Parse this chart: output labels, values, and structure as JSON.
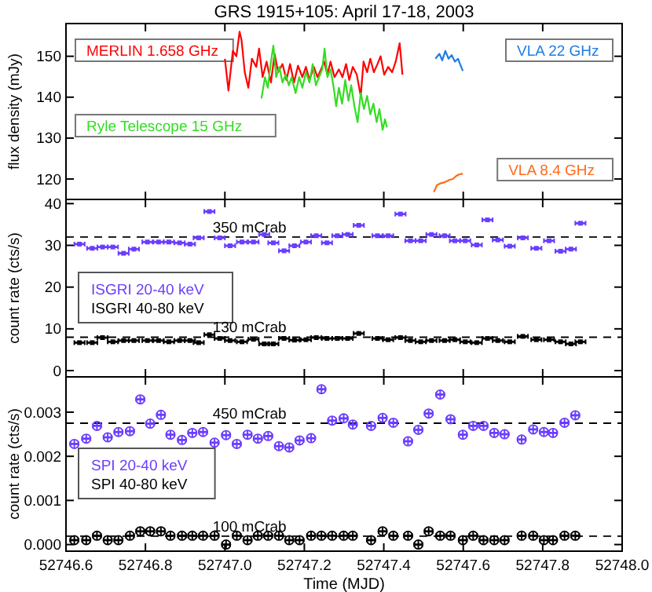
{
  "chart_data": [
    {
      "type": "line",
      "title": "GRS 1915+105: April 17-18, 2003",
      "ylabel": "flux density (mJy)",
      "xlim": [
        52746.6,
        52748.0
      ],
      "xticks": [
        52746.6,
        52746.8,
        52747,
        52747.2,
        52747.4,
        52747.6,
        52747.8,
        52748
      ],
      "ylim": [
        115,
        158
      ],
      "yticks": [
        120,
        130,
        140,
        150
      ],
      "tick_labels": "y",
      "series": [
        {
          "name": "MERLIN 1.658 GHz",
          "color": "#ff0000",
          "x": [
            52747.0,
            52747.009,
            52747.02,
            52747.029,
            52747.037,
            52747.042,
            52747.05,
            52747.059,
            52747.068,
            52747.079,
            52747.086,
            52747.095,
            52747.105,
            52747.116,
            52747.125,
            52747.134,
            52747.145,
            52747.155,
            52747.164,
            52747.174,
            52747.184,
            52747.195,
            52747.204,
            52747.213,
            52747.224,
            52747.233,
            52747.242,
            52747.25,
            52747.258,
            52747.266,
            52747.276,
            52747.287,
            52747.296,
            52747.305,
            52747.313,
            52747.322,
            52747.332,
            52747.342,
            52747.349,
            52747.358,
            52747.366,
            52747.375,
            52747.384,
            52747.392,
            52747.401,
            52747.411,
            52747.421,
            52747.43,
            52747.44,
            52747.447
          ],
          "values": [
            149.4,
            141.6,
            151.3,
            150,
            156,
            153.9,
            146.1,
            142.3,
            149.4,
            147.4,
            151.9,
            144.9,
            148.7,
            143.6,
            150.6,
            146.1,
            148.1,
            144.2,
            148.1,
            143.6,
            147.7,
            144.9,
            147.4,
            144.2,
            147.4,
            144.9,
            146.8,
            148.7,
            145.5,
            148.7,
            144.9,
            146.8,
            144.9,
            148.1,
            144.2,
            147.4,
            145.5,
            140.3,
            148.7,
            146.1,
            149.4,
            146.1,
            148.1,
            150,
            145.5,
            147.4,
            146.1,
            148.7,
            153.2,
            145.5
          ]
        },
        {
          "name": "Ryle Telescope 15 GHz",
          "color": "#33dd22",
          "x": [
            52747.092,
            52747.101,
            52747.108,
            52747.116,
            52747.122,
            52747.129,
            52747.137,
            52747.145,
            52747.153,
            52747.161,
            52747.168,
            52747.178,
            52747.187,
            52747.195,
            52747.204,
            52747.213,
            52747.221,
            52747.229,
            52747.237,
            52747.245,
            52747.251,
            52747.258,
            52747.266,
            52747.274,
            52747.28,
            52747.287,
            52747.295,
            52747.303,
            52747.311,
            52747.318,
            52747.326,
            52747.334,
            52747.342,
            52747.35,
            52747.358,
            52747.366,
            52747.374,
            52747.382,
            52747.389,
            52747.397,
            52747.403,
            52747.408
          ],
          "values": [
            139.7,
            144.9,
            142.3,
            148.7,
            152.6,
            144.9,
            147.4,
            143.6,
            145.5,
            142.9,
            144.9,
            141,
            144.9,
            142.3,
            146.1,
            143.6,
            148.1,
            142.9,
            144.9,
            146.8,
            151.9,
            144.9,
            146.8,
            142.3,
            137.8,
            142.3,
            138.4,
            144.2,
            139.1,
            142.9,
            137.8,
            133.9,
            141,
            137.1,
            140.3,
            135.8,
            138.4,
            133.9,
            137.1,
            132,
            134.6,
            132.6
          ]
        },
        {
          "name": "VLA 22 GHz",
          "color": "#1e7de6",
          "x": [
            52747.53,
            52747.54,
            52747.547,
            52747.555,
            52747.563,
            52747.571,
            52747.579,
            52747.587,
            52747.592,
            52747.599
          ],
          "values": [
            149.4,
            150.6,
            149,
            151.3,
            149.4,
            150.3,
            148.7,
            149.4,
            148.1,
            146.4
          ]
        },
        {
          "name": "VLA 8.4 GHz",
          "color": "#ff6a1a",
          "x": [
            52747.526,
            52747.534,
            52747.542,
            52747.55,
            52747.558,
            52747.566,
            52747.574,
            52747.582,
            52747.589,
            52747.599
          ],
          "values": [
            116.8,
            118.5,
            118.9,
            119.1,
            119.4,
            119.8,
            120,
            120.7,
            121.1,
            121.3
          ]
        }
      ]
    },
    {
      "type": "scatter",
      "ylabel": "count rate (cts/s)",
      "xlim": [
        52746.6,
        52748.0
      ],
      "xticks": [
        52746.6,
        52746.8,
        52747,
        52747.2,
        52747.4,
        52747.6,
        52747.8,
        52748
      ],
      "ylim": [
        -1.5,
        41
      ],
      "yticks": [
        0,
        10,
        20,
        30,
        40
      ],
      "tick_labels": "y",
      "legend": "left",
      "marker": "square",
      "x": [
        52746.634,
        52746.666,
        52746.692,
        52746.718,
        52746.745,
        52746.771,
        52746.805,
        52746.833,
        52746.859,
        52746.886,
        52746.912,
        52746.934,
        52746.961,
        52746.987,
        52747.013,
        52747.043,
        52747.072,
        52747.099,
        52747.122,
        52747.149,
        52747.175,
        52747.204,
        52747.23,
        52747.257,
        52747.283,
        52747.309,
        52747.337,
        52747.384,
        52747.411,
        52747.442,
        52747.467,
        52747.493,
        52747.52,
        52747.553,
        52747.579,
        52747.605,
        52747.634,
        52747.661,
        52747.687,
        52747.717,
        52747.75,
        52747.784,
        52747.816,
        52747.845,
        52747.871,
        52747.895
      ],
      "ref_lines": [
        {
          "axis": "y",
          "value": 32,
          "label": "350 mCrab",
          "line_style": "dashed"
        },
        {
          "axis": "y",
          "value": 8,
          "label": "130 mCrab",
          "line_style": "dashed"
        }
      ],
      "series": [
        {
          "name": "ISGRI 20-40 keV",
          "color": "#6a3dff",
          "values": [
            30.3,
            29.3,
            29.6,
            29.6,
            28.1,
            29.1,
            30.8,
            30.8,
            30.8,
            30.6,
            30.3,
            31.8,
            38.1,
            31.8,
            29.9,
            30.8,
            30.8,
            32.6,
            30.6,
            28.7,
            29.9,
            30.8,
            32.3,
            30.6,
            32.3,
            32.6,
            34.8,
            32.3,
            32.3,
            37.5,
            31.1,
            31.1,
            32.6,
            32.3,
            31.1,
            31.1,
            30.1,
            36.1,
            31.3,
            29.8,
            31.8,
            29.3,
            31.1,
            28.6,
            29.1,
            35.3
          ],
          "errors": [
            0.3,
            0.3,
            0.3,
            0.3,
            0.3,
            0.3,
            0.3,
            0.3,
            0.3,
            0.3,
            0.3,
            0.3,
            0.3,
            0.3,
            0.3,
            0.3,
            0.3,
            0.3,
            0.3,
            0.3,
            0.3,
            0.3,
            0.3,
            0.3,
            0.3,
            0.3,
            0.3,
            0.3,
            0.3,
            0.3,
            0.3,
            0.3,
            0.3,
            0.3,
            0.3,
            0.3,
            0.3,
            0.3,
            0.3,
            0.3,
            0.3,
            0.3,
            0.3,
            0.3,
            0.3,
            0.3
          ],
          "xerrors": [
            0.013,
            0.013,
            0.013,
            0.013,
            0.013,
            0.013,
            0.013,
            0.013,
            0.013,
            0.013,
            0.013,
            0.013,
            0.013,
            0.013,
            0.013,
            0.013,
            0.013,
            0.013,
            0.013,
            0.013,
            0.013,
            0.013,
            0.013,
            0.013,
            0.013,
            0.013,
            0.013,
            0.013,
            0.013,
            0.013,
            0.013,
            0.013,
            0.013,
            0.013,
            0.013,
            0.013,
            0.013,
            0.013,
            0.013,
            0.013,
            0.013,
            0.013,
            0.013,
            0.013,
            0.013,
            0.013
          ]
        },
        {
          "name": "ISGRI 40-80 keV",
          "color": "#000000",
          "values": [
            6.7,
            6.7,
            7.9,
            6.9,
            7.2,
            7.2,
            7.2,
            7.2,
            6.9,
            7.2,
            7.2,
            6.7,
            8.6,
            7.7,
            7.2,
            6.9,
            7.5,
            6.4,
            6.4,
            7.7,
            7.3,
            7.4,
            7.9,
            7.7,
            7.7,
            7.7,
            8.9,
            7.7,
            7.4,
            7.9,
            7.2,
            6.9,
            7.2,
            7.2,
            7.4,
            6.9,
            6.7,
            7.7,
            7.2,
            6.9,
            8.2,
            7.4,
            7.4,
            6.9,
            6.4,
            6.9
          ],
          "errors": [
            0.3,
            0.3,
            0.3,
            0.3,
            0.3,
            0.3,
            0.3,
            0.3,
            0.3,
            0.3,
            0.3,
            0.3,
            0.3,
            0.3,
            0.3,
            0.3,
            0.3,
            0.3,
            0.3,
            0.3,
            0.3,
            0.3,
            0.3,
            0.3,
            0.3,
            0.3,
            0.3,
            0.3,
            0.3,
            0.3,
            0.3,
            0.3,
            0.3,
            0.3,
            0.3,
            0.3,
            0.3,
            0.3,
            0.3,
            0.3,
            0.3,
            0.3,
            0.3,
            0.3,
            0.3,
            0.3
          ],
          "xerrors": [
            0.013,
            0.013,
            0.013,
            0.013,
            0.013,
            0.013,
            0.013,
            0.013,
            0.013,
            0.013,
            0.013,
            0.013,
            0.013,
            0.013,
            0.013,
            0.013,
            0.013,
            0.013,
            0.013,
            0.013,
            0.013,
            0.013,
            0.013,
            0.013,
            0.013,
            0.013,
            0.013,
            0.013,
            0.013,
            0.013,
            0.013,
            0.013,
            0.013,
            0.013,
            0.013,
            0.013,
            0.013,
            0.013,
            0.013,
            0.013,
            0.013,
            0.013,
            0.013,
            0.013,
            0.013,
            0.013
          ]
        }
      ]
    },
    {
      "type": "scatter",
      "xlabel": "Time (MJD)",
      "ylabel": "count rate (cts/s)",
      "xlim": [
        52746.6,
        52748.0
      ],
      "xticks": [
        52746.6,
        52746.8,
        {
          "value": 52747.0,
          "label": "52747.0"
        },
        52747.2,
        52747.4,
        52747.6,
        52747.8,
        {
          "value": 52748.0,
          "label": "52748.0"
        }
      ],
      "ylim": [
        -0.00015,
        0.0038
      ],
      "yticks": [
        {
          "value": 0,
          "label": "0.000"
        },
        0.001,
        0.002,
        0.003
      ],
      "legend": "left",
      "marker": "circle",
      "x": [
        52746.621,
        52746.651,
        52746.678,
        52746.705,
        52746.732,
        52746.761,
        52746.787,
        52746.812,
        52746.839,
        52746.863,
        52746.892,
        52746.918,
        52746.945,
        52746.974,
        52747.003,
        52747.03,
        52747.057,
        52747.083,
        52747.109,
        52747.136,
        52747.162,
        52747.188,
        52747.217,
        52747.243,
        52747.27,
        52747.299,
        52747.322,
        52747.368,
        52747.397,
        52747.424,
        52747.461,
        52747.487,
        52747.513,
        52747.542,
        52747.568,
        52747.599,
        52747.625,
        52747.651,
        52747.678,
        52747.704,
        52747.747,
        52747.776,
        52747.803,
        52747.826,
        52747.855,
        52747.882
      ],
      "ref_lines": [
        {
          "axis": "y",
          "value": 0.00275,
          "label": "450 mCrab",
          "line_style": "dashed"
        },
        {
          "axis": "y",
          "value": 0.00019,
          "label": "100 mCrab",
          "line_style": "dashed"
        }
      ],
      "series": [
        {
          "name": "SPI 20-40 keV",
          "color": "#6a3dff",
          "values": [
            0.00228,
            0.0024,
            0.00269,
            0.00243,
            0.00255,
            0.00257,
            0.00329,
            0.00274,
            0.00294,
            0.00249,
            0.00237,
            0.00253,
            0.00255,
            0.00231,
            0.00248,
            0.00228,
            0.00249,
            0.0024,
            0.00246,
            0.00223,
            0.0022,
            0.00236,
            0.00241,
            0.00352,
            0.00281,
            0.00286,
            0.00272,
            0.00269,
            0.00287,
            0.00276,
            0.00234,
            0.0026,
            0.00297,
            0.0034,
            0.00284,
            0.00249,
            0.00269,
            0.00269,
            0.00253,
            0.0025,
            0.00238,
            0.00261,
            0.00255,
            0.00253,
            0.00276,
            0.00293
          ],
          "errors": [
            0.0001,
            0.0001,
            0.0001,
            0.0001,
            0.0001,
            0.0001,
            0.0001,
            0.0001,
            0.0001,
            0.0001,
            0.0001,
            0.0001,
            0.0001,
            0.0001,
            0.0001,
            0.0001,
            0.0001,
            0.0001,
            0.0001,
            0.0001,
            0.0001,
            0.0001,
            0.0001,
            0.0001,
            0.0001,
            0.0001,
            0.0001,
            0.0001,
            0.0001,
            0.0001,
            0.0001,
            0.0001,
            0.0001,
            0.0001,
            0.0001,
            0.0001,
            0.0001,
            0.0001,
            0.0001,
            0.0001,
            0.0001,
            0.0001,
            0.0001,
            0.0001,
            0.0001,
            0.0001
          ],
          "xerrors": [
            0.01,
            0.01,
            0.01,
            0.01,
            0.01,
            0.01,
            0.01,
            0.01,
            0.01,
            0.01,
            0.01,
            0.01,
            0.01,
            0.01,
            0.01,
            0.01,
            0.01,
            0.01,
            0.01,
            0.01,
            0.01,
            0.01,
            0.01,
            0.01,
            0.01,
            0.01,
            0.01,
            0.01,
            0.01,
            0.01,
            0.01,
            0.01,
            0.01,
            0.01,
            0.01,
            0.01,
            0.01,
            0.01,
            0.01,
            0.01,
            0.01,
            0.01,
            0.01,
            0.01,
            0.01,
            0.01
          ]
        },
        {
          "name": "SPI 40-80 keV",
          "color": "#000000",
          "values": [
            0.0001,
            0.0001,
            0.0002,
            0.0001,
            0.0001,
            0.0002,
            0.0003,
            0.0003,
            0.0003,
            0.0002,
            0.0002,
            0.0002,
            0.0002,
            0.0002,
            0,
            0.0002,
            0.0001,
            0.0002,
            0.0002,
            0.0002,
            0.0001,
            0.0001,
            0.0002,
            0.0002,
            0.0002,
            0.0002,
            0.0002,
            0.0001,
            0.0003,
            0.0002,
            0.0002,
            0,
            0.0003,
            0.0002,
            0.0002,
            0.0001,
            0.0002,
            0.0001,
            0.0001,
            0.0001,
            0.0002,
            0.0002,
            0.0001,
            0.0001,
            0.0002,
            0.0002
          ],
          "errors": [
            0.0001,
            0.0001,
            0.0001,
            0.0001,
            0.0001,
            0.0001,
            0.0001,
            0.0001,
            0.0001,
            0.0001,
            0.0001,
            0.0001,
            0.0001,
            0.0001,
            0.0001,
            0.0001,
            0.0001,
            0.0001,
            0.0001,
            0.0001,
            0.0001,
            0.0001,
            0.0001,
            0.0001,
            0.0001,
            0.0001,
            0.0001,
            0.0001,
            0.0001,
            0.0001,
            0.0001,
            0.0001,
            0.0001,
            0.0001,
            0.0001,
            0.0001,
            0.0001,
            0.0001,
            0.0001,
            0.0001,
            0.0001,
            0.0001,
            0.0001,
            0.0001,
            0.0001,
            0.0001
          ],
          "xerrors": [
            0.01,
            0.01,
            0.01,
            0.01,
            0.01,
            0.01,
            0.01,
            0.01,
            0.01,
            0.01,
            0.01,
            0.01,
            0.01,
            0.01,
            0.01,
            0.01,
            0.01,
            0.01,
            0.01,
            0.01,
            0.01,
            0.01,
            0.01,
            0.01,
            0.01,
            0.01,
            0.01,
            0.01,
            0.01,
            0.01,
            0.01,
            0.01,
            0.01,
            0.01,
            0.01,
            0.01,
            0.01,
            0.01,
            0.01,
            0.01,
            0.01,
            0.01,
            0.01,
            0.01,
            0.01,
            0.01
          ]
        }
      ]
    }
  ]
}
